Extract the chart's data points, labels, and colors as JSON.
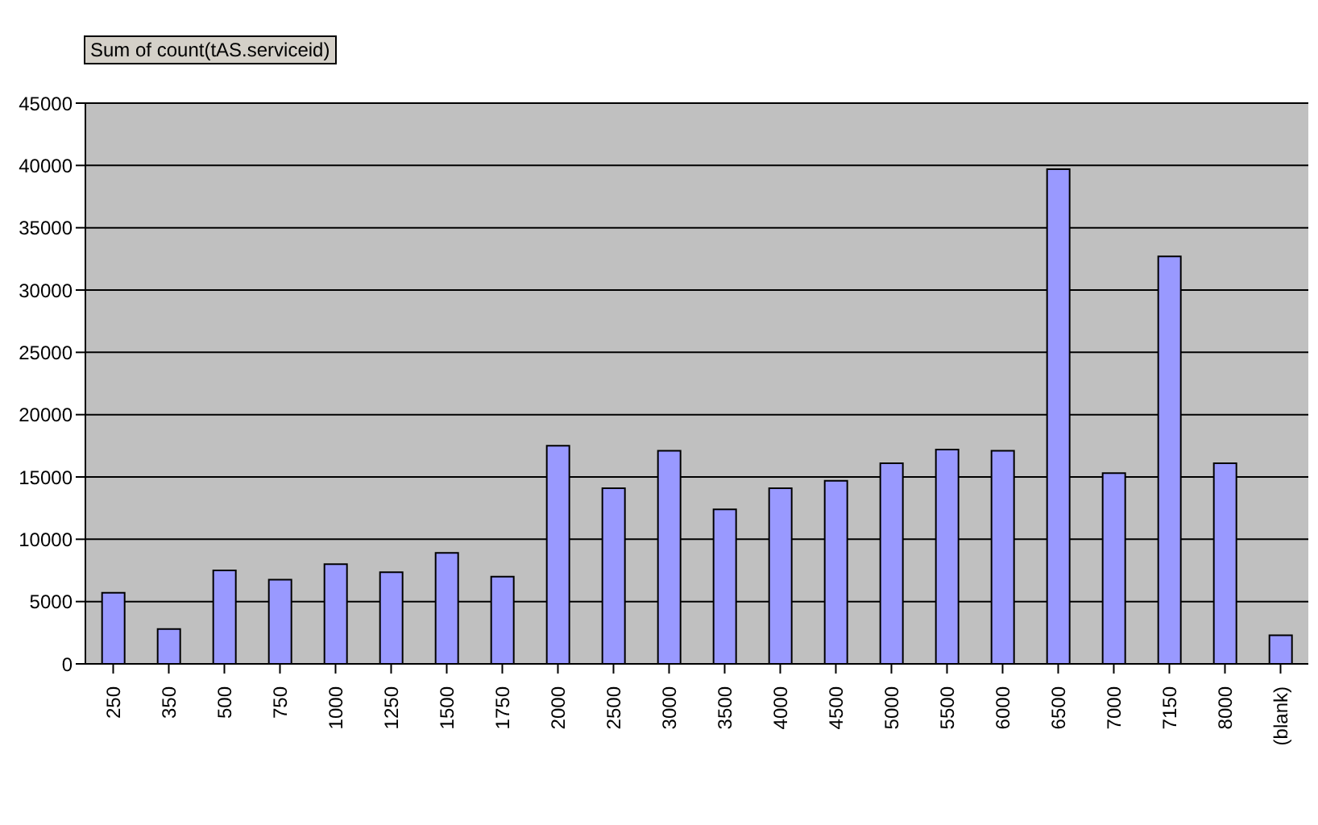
{
  "chart_data": {
    "type": "bar",
    "categories": [
      "250",
      "350",
      "500",
      "750",
      "1000",
      "1250",
      "1500",
      "1750",
      "2000",
      "2500",
      "3000",
      "3500",
      "4000",
      "4500",
      "5000",
      "5500",
      "6000",
      "6500",
      "7000",
      "7150",
      "8000",
      "(blank)"
    ],
    "series": [
      {
        "name": "Sum of count(tAS.serviceid)",
        "color": "#9999ff",
        "values": [
          5700,
          2800,
          7500,
          6750,
          8000,
          7350,
          8900,
          7000,
          17500,
          14100,
          17100,
          12400,
          14100,
          14700,
          16100,
          17200,
          17100,
          39700,
          15300,
          32700,
          16100,
          2300
        ]
      }
    ],
    "ylim": [
      0,
      45000
    ],
    "yticks": [
      0,
      5000,
      10000,
      15000,
      20000,
      25000,
      30000,
      35000,
      40000,
      45000
    ],
    "grid": "y",
    "legend": "top left"
  }
}
